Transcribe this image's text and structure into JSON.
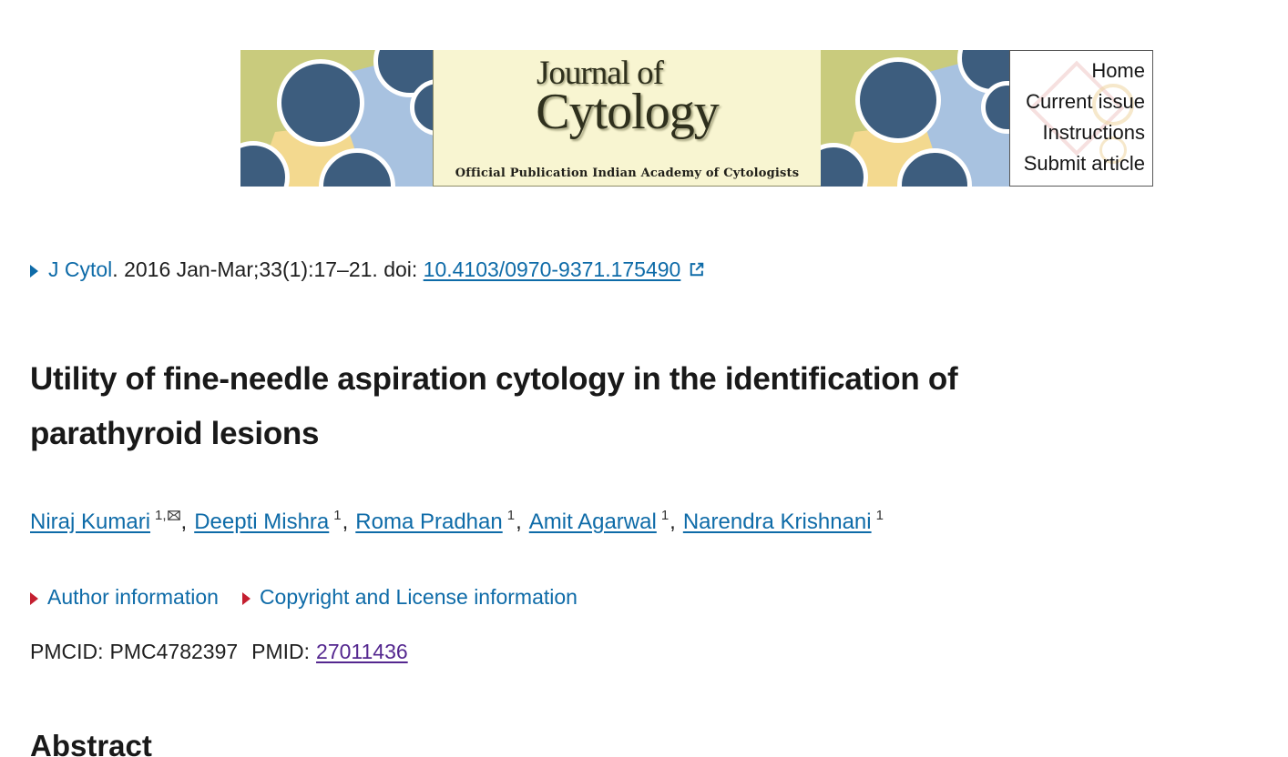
{
  "banner": {
    "journal_line1": "Journal of",
    "journal_line2": "Cytology",
    "tagline": "Official Publication Indian Academy of Cytologists",
    "nav_links": [
      "Home",
      "Current issue",
      "Instructions",
      "Submit article"
    ]
  },
  "citation": {
    "journal": "J Cytol",
    "details": ". 2016 Jan-Mar;33(1):17–21. doi: ",
    "doi": "10.4103/0970-9371.175490"
  },
  "title": {
    "line1": "Utility of fine-needle aspiration cytology in the identification of",
    "line2": "parathyroid lesions"
  },
  "authors": [
    {
      "name": "Niraj Kumari",
      "sup": "1,",
      "email": true
    },
    {
      "name": "Deepti Mishra",
      "sup": "1",
      "email": false
    },
    {
      "name": "Roma Pradhan",
      "sup": "1",
      "email": false
    },
    {
      "name": "Amit Agarwal",
      "sup": "1",
      "email": false
    },
    {
      "name": "Narendra Krishnani",
      "sup": "1",
      "email": false
    }
  ],
  "info_links": {
    "author_information": "Author information",
    "copyright": "Copyright and License information"
  },
  "ids": {
    "pmcid_label": "PMCID:",
    "pmcid": "PMC4782397",
    "pmid_label": "PMID:",
    "pmid": "27011436"
  },
  "sections": {
    "abstract_heading": "Abstract"
  },
  "colors": {
    "link_blue": "#0e6ba8",
    "visited_purple": "#54278f",
    "marker_red": "#c41f30",
    "text_dark": "#1f1f1f",
    "banner_olive": "#c9cb7d",
    "banner_blue_light": "#a8c2e0",
    "banner_yellow": "#f3d98f",
    "banner_circle_navy": "#3d5d7e",
    "banner_cream": "#f8f5d1"
  }
}
